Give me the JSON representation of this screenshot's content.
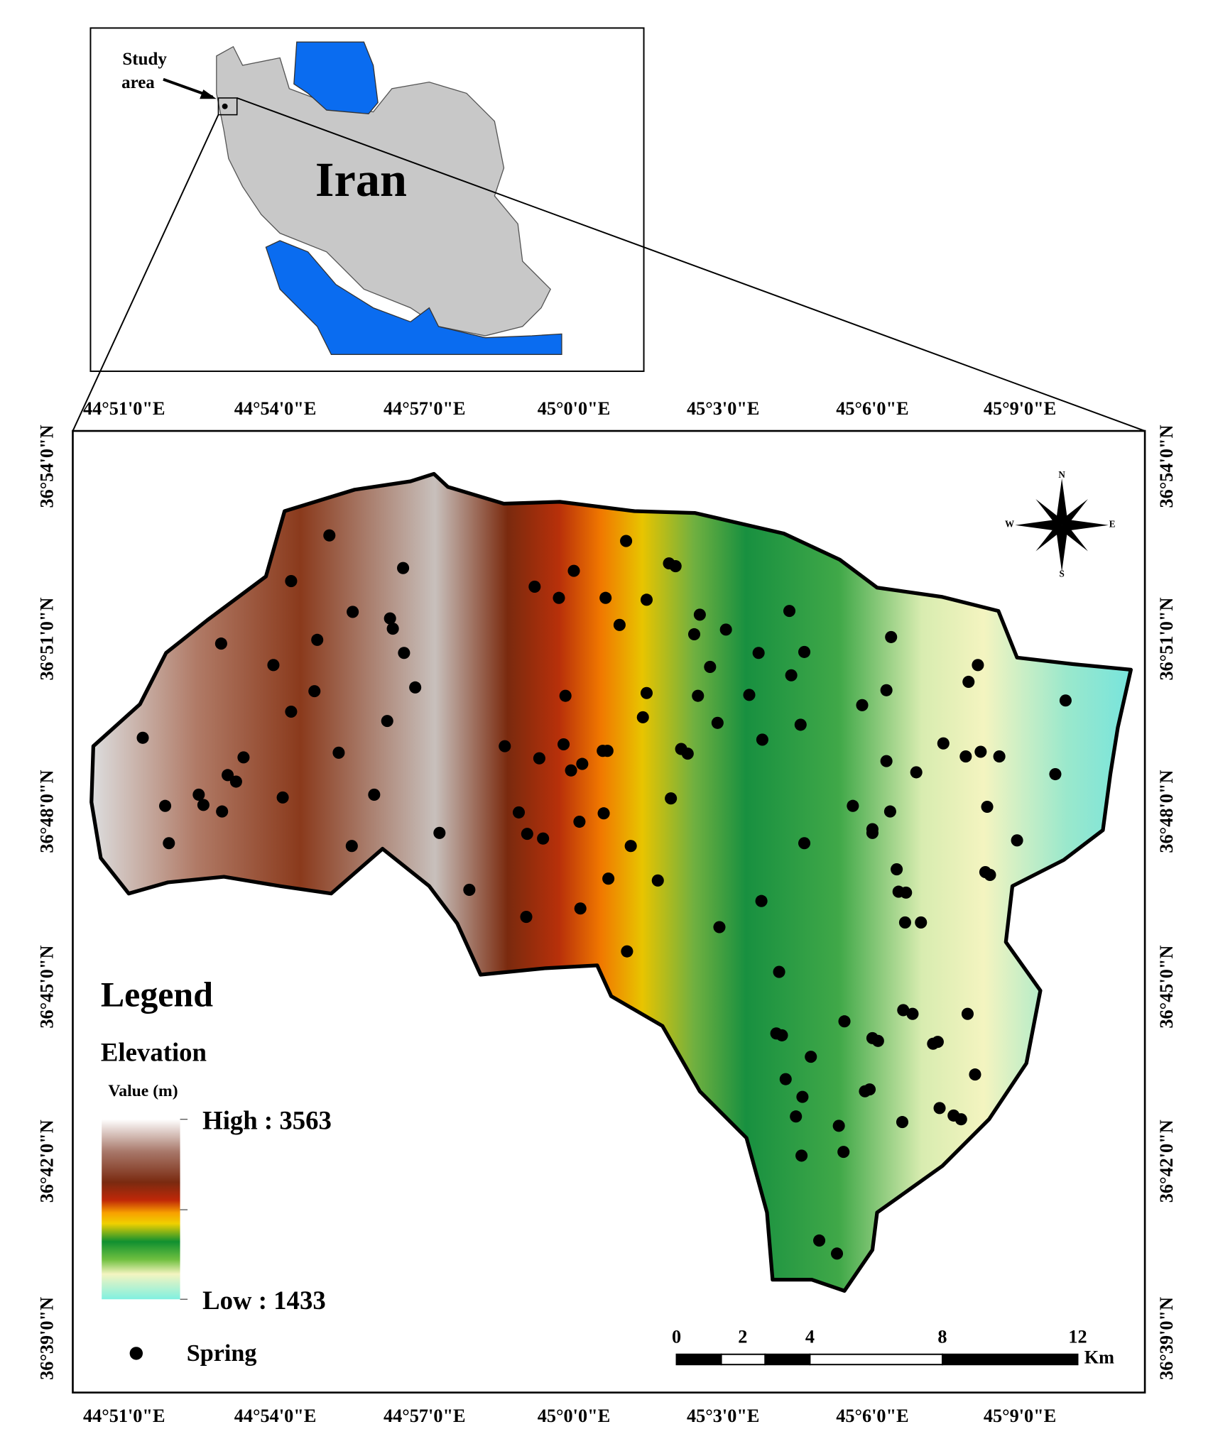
{
  "inset": {
    "study_area_label": [
      "Study",
      "area"
    ],
    "country_label": "Iran"
  },
  "map": {
    "lon_labels": [
      "44°51'0\"E",
      "44°54'0\"E",
      "44°57'0\"E",
      "45°0'0\"E",
      "45°3'0\"E",
      "45°6'0\"E",
      "45°9'0\"E"
    ],
    "lat_labels": [
      "36°54'0\"N",
      "36°51'0\"N",
      "36°48'0\"N",
      "36°45'0\"N",
      "36°42'0\"N",
      "36°39'0\"N"
    ]
  },
  "north_arrow": {
    "n": "N",
    "s": "S",
    "e": "E",
    "w": "W"
  },
  "legend": {
    "title": "Legend",
    "layer": "Elevation",
    "unit": "Value (m)",
    "high": "High : 3563",
    "low": "Low : 1433",
    "spring": "Spring"
  },
  "scale_bar": {
    "ticks": [
      "0",
      "2",
      "4",
      "8",
      "12"
    ],
    "unit": "Km"
  }
}
